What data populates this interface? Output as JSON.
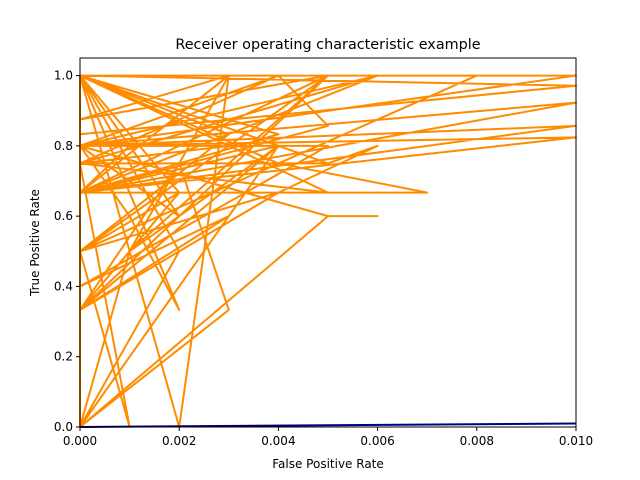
{
  "chart_data": {
    "type": "line",
    "title": "Receiver operating characteristic example",
    "xlabel": "False Positive Rate",
    "ylabel": "True Positive Rate",
    "xlim": [
      0.0,
      0.01
    ],
    "ylim": [
      0.0,
      1.05
    ],
    "xticks": [
      "0.000",
      "0.002",
      "0.004",
      "0.006",
      "0.008",
      "0.010"
    ],
    "yticks": [
      "0.0",
      "0.2",
      "0.4",
      "0.6",
      "0.8",
      "1.0"
    ],
    "grid": false,
    "legend": "none",
    "series": [
      {
        "color": "#ff8c00",
        "points": [
          [
            0.0,
            0.0
          ],
          [
            0.0,
            1.0
          ],
          [
            0.003,
            1.0
          ],
          [
            0.0,
            0.667
          ],
          [
            0.005,
            1.0
          ],
          [
            0.001,
            0.5
          ],
          [
            0.0,
            0.333
          ],
          [
            0.004,
            0.8
          ],
          [
            0.0,
            1.0
          ],
          [
            0.002,
            0.5
          ],
          [
            0.0,
            0.0
          ],
          [
            0.004,
            0.8
          ],
          [
            0.0,
            1.0
          ],
          [
            0.006,
            1.0
          ],
          [
            0.0,
            0.75
          ],
          [
            0.001,
            0.0
          ],
          [
            0.0,
            0.5
          ],
          [
            0.003,
            0.833
          ],
          [
            0.0,
            1.0
          ],
          [
            0.002,
            0.333
          ],
          [
            0.001,
            0.6
          ],
          [
            0.0,
            0.8
          ],
          [
            0.004,
            1.0
          ],
          [
            0.005,
            0.857
          ],
          [
            0.0,
            0.667
          ],
          [
            0.007,
            0.667
          ],
          [
            0.004,
            0.75
          ],
          [
            0.0,
            1.0
          ],
          [
            0.0,
            0.0
          ],
          [
            0.003,
            0.333
          ],
          [
            0.002,
            0.75
          ],
          [
            0.0,
            0.333
          ],
          [
            0.005,
            1.0
          ],
          [
            0.0,
            0.875
          ],
          [
            0.003,
            1.0
          ],
          [
            0.002,
            0.0
          ],
          [
            0.0,
            1.0
          ],
          [
            0.005,
            0.75
          ],
          [
            0.006,
            0.8
          ],
          [
            0.004,
            0.667
          ],
          [
            0.0,
            0.667
          ],
          [
            0.001,
            0.8
          ],
          [
            0.0,
            1.0
          ],
          [
            0.01,
            1.0
          ],
          [
            0.0,
            0.8
          ],
          [
            0.002,
            0.6
          ],
          [
            0.0,
            1.0
          ],
          [
            0.008,
            1.0
          ],
          [
            0.0,
            0.5
          ],
          [
            0.005,
            1.0
          ],
          [
            0.0,
            0.667
          ],
          [
            0.006,
            1.0
          ],
          [
            0.0,
            0.667
          ],
          [
            0.003,
            1.0
          ],
          [
            0.001,
            0.5
          ],
          [
            0.002,
            0.667
          ],
          [
            0.0,
            1.0
          ],
          [
            0.005,
            0.667
          ],
          [
            0.0,
            0.75
          ],
          [
            0.004,
            1.0
          ],
          [
            0.0,
            0.8
          ],
          [
            0.005,
            0.8
          ],
          [
            0.0,
            0.4
          ],
          [
            0.003,
            0.6
          ],
          [
            0.0,
            0.333
          ],
          [
            0.004,
            0.667
          ],
          [
            0.0,
            0.5
          ],
          [
            0.002,
            0.667
          ],
          [
            0.0,
            1.0
          ],
          [
            0.01,
            0.971
          ],
          [
            0.0,
            0.833
          ],
          [
            0.0,
            0.667
          ],
          [
            0.01,
            0.857
          ],
          [
            0.0,
            0.8
          ],
          [
            0.005,
            0.6
          ],
          [
            0.006,
            0.6
          ],
          [
            0.005,
            0.6
          ],
          [
            0.0,
            0.0
          ],
          [
            0.001,
            0.5
          ],
          [
            0.004,
            0.8
          ],
          [
            0.0,
            0.667
          ],
          [
            0.002,
            0.8
          ],
          [
            0.003,
            0.8
          ],
          [
            0.0,
            0.75
          ],
          [
            0.005,
            0.75
          ],
          [
            0.0,
            1.0
          ],
          [
            0.004,
            0.833
          ],
          [
            0.0,
            0.667
          ],
          [
            0.01,
            0.923
          ],
          [
            0.0,
            0.8
          ],
          [
            0.006,
            1.0
          ],
          [
            0.0,
            0.667
          ],
          [
            0.01,
            0.824
          ],
          [
            0.0,
            0.8
          ]
        ]
      },
      {
        "color": "#000080",
        "points": [
          [
            0.0,
            0.0
          ],
          [
            0.01,
            0.01
          ]
        ]
      }
    ]
  }
}
